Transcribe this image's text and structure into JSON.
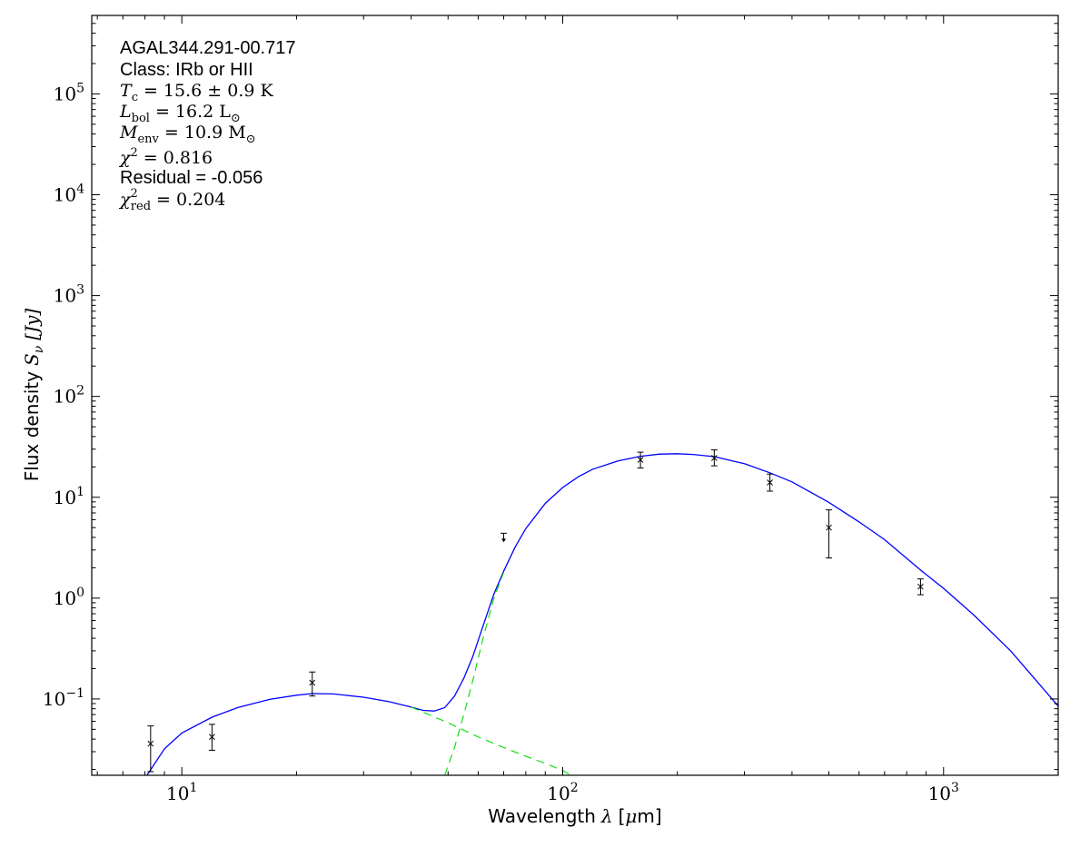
{
  "chart_data": {
    "type": "scatter",
    "title": "",
    "xlabel_text": "Wavelength",
    "xlabel_symbol": "λ",
    "xlabel_unit_open": "[",
    "xlabel_unit_mu": "μ",
    "xlabel_unit_rest": "m]",
    "ylabel_text": "Flux density",
    "ylabel_symbol": "S",
    "ylabel_sub": "ν",
    "ylabel_unit": "[Jy]",
    "xscale": "log",
    "yscale": "log",
    "xlim": [
      5.8,
      2000
    ],
    "ylim": [
      0.0175,
      600000
    ],
    "x_ticks": [
      {
        "base": "10",
        "exp": "1",
        "value": 10
      },
      {
        "base": "10",
        "exp": "2",
        "value": 100
      },
      {
        "base": "10",
        "exp": "3",
        "value": 1000
      }
    ],
    "y_ticks": [
      {
        "base": "10",
        "exp": "−1",
        "value": 0.1
      },
      {
        "base": "10",
        "exp": "0",
        "value": 1
      },
      {
        "base": "10",
        "exp": "1",
        "value": 10
      },
      {
        "base": "10",
        "exp": "2",
        "value": 100
      },
      {
        "base": "10",
        "exp": "3",
        "value": 1000
      },
      {
        "base": "10",
        "exp": "4",
        "value": 10000
      },
      {
        "base": "10",
        "exp": "5",
        "value": 100000
      }
    ],
    "annotations": {
      "source": "AGAL344.291-00.717",
      "class_line": "Class: IRb or HII",
      "tc_sym": "T",
      "tc_sub": "c",
      "tc_val": "= 15.6 ± 0.9 K",
      "lbol_sym": "L",
      "lbol_sub": "bol",
      "lbol_val": "= 16.2 L",
      "lbol_unit_sub": "⊙",
      "menv_sym": "M",
      "menv_sub": "env",
      "menv_val": "= 10.9 M",
      "menv_unit_sub": "⊙",
      "chi_sym": "χ",
      "chi_sup": "2",
      "chi_val": "= 0.816",
      "residual_line": "Residual = -0.056",
      "chired_sym": "χ",
      "chired_sup": "2",
      "chired_sub": "red",
      "chired_val": "= 0.204"
    },
    "points": [
      {
        "x": 8.28,
        "y": 0.036,
        "yerr_low": 0.019,
        "yerr_high": 0.054
      },
      {
        "x": 12.0,
        "y": 0.042,
        "yerr_low": 0.031,
        "yerr_high": 0.056
      },
      {
        "x": 22.0,
        "y": 0.145,
        "yerr_low": 0.107,
        "yerr_high": 0.185
      },
      {
        "x": 160,
        "y": 23.5,
        "yerr_low": 19.5,
        "yerr_high": 28.0
      },
      {
        "x": 250,
        "y": 24.5,
        "yerr_low": 20.5,
        "yerr_high": 29.5
      },
      {
        "x": 350,
        "y": 14.0,
        "yerr_low": 11.5,
        "yerr_high": 17.0
      },
      {
        "x": 500,
        "y": 5.0,
        "yerr_low": 2.5,
        "yerr_high": 7.5
      },
      {
        "x": 870,
        "y": 1.3,
        "yerr_low": 1.08,
        "yerr_high": 1.55
      }
    ],
    "upper_limits": [
      {
        "x": 70,
        "y": 4.4
      }
    ],
    "series": [
      {
        "style": "solid",
        "color": "#0000ff",
        "x": [
          8.1,
          9,
          10,
          12,
          14,
          17,
          20,
          22,
          25,
          30,
          35,
          40,
          43,
          46,
          49,
          52,
          55,
          58,
          62,
          66,
          70,
          75,
          80,
          90,
          100,
          110,
          120,
          140,
          160,
          180,
          200,
          220,
          250,
          300,
          350,
          400,
          500,
          600,
          700,
          870,
          1000,
          1200,
          1500,
          2000
        ],
        "y": [
          0.0175,
          0.032,
          0.046,
          0.066,
          0.082,
          0.099,
          0.109,
          0.113,
          0.112,
          0.104,
          0.094,
          0.083,
          0.077,
          0.076,
          0.082,
          0.107,
          0.16,
          0.26,
          0.55,
          1.1,
          1.85,
          3.2,
          4.9,
          8.7,
          12.5,
          16.0,
          19.0,
          23.0,
          25.5,
          26.8,
          27.0,
          26.6,
          25.3,
          21.5,
          17.5,
          14.2,
          8.9,
          5.7,
          3.8,
          1.9,
          1.25,
          0.68,
          0.3,
          0.085
        ]
      },
      {
        "style": "dashed",
        "color": "#00dd00",
        "x": [
          40,
          50,
          60,
          70,
          80,
          90,
          100,
          105
        ],
        "y": [
          0.083,
          0.058,
          0.042,
          0.033,
          0.027,
          0.023,
          0.0195,
          0.0175
        ]
      },
      {
        "style": "dashed",
        "color": "#00dd00",
        "x": [
          49,
          52,
          55,
          58,
          62,
          66,
          70
        ],
        "y": [
          0.0175,
          0.033,
          0.07,
          0.15,
          0.42,
          1.0,
          1.8
        ]
      }
    ]
  }
}
